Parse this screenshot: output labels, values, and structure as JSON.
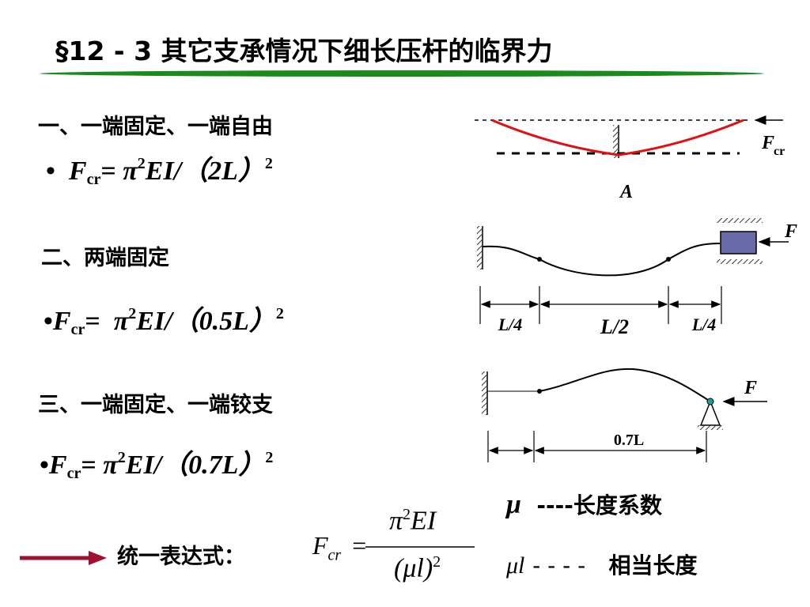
{
  "header": {
    "title": "§12 - 3 其它支承情况下细长压杆的临界力"
  },
  "sections": [
    {
      "heading": "一、一端固定、一端自由",
      "formula": {
        "bullet": "•",
        "symbol": "F",
        "subscript": "cr",
        "equals": "=",
        "pi": "π",
        "pi_power": "2",
        "body": "EI/（2L）",
        "power": "2"
      }
    },
    {
      "heading": "二、两端固定",
      "formula": {
        "bullet": "•",
        "symbol": "F",
        "subscript": "cr",
        "equals": "=",
        "pi": "π",
        "pi_power": "2",
        "body": "EI/（0.5L）",
        "power": "2"
      }
    },
    {
      "heading": "三、一端固定、一端铰支",
      "formula": {
        "bullet": "•",
        "symbol": "F",
        "subscript": "cr",
        "equals": "=",
        "pi": "π",
        "pi_power": "2",
        "body": "EI/（0.7L）",
        "power": "2"
      }
    }
  ],
  "diagrams": [
    {
      "force": "F",
      "force_subscript": "cr",
      "point": "A"
    },
    {
      "force": "F",
      "dimensions": [
        "L/4",
        "L/2",
        "L/4"
      ]
    },
    {
      "force": "F",
      "dimension": "0.7L"
    }
  ],
  "summary": {
    "label": "统一表达式：",
    "formula": {
      "symbol": "F",
      "subscript": "cr",
      "equals": "=",
      "numerator_pi": "π",
      "numerator_power": "2",
      "numerator_rest": "EI",
      "denominator": "(μl)",
      "denominator_power": "2"
    }
  },
  "legend": [
    {
      "symbol": "μ",
      "dashes": "----",
      "meaning": "长度系数"
    },
    {
      "symbol": "μl",
      "dashes": "- - - -",
      "meaning": "相当长度"
    }
  ]
}
